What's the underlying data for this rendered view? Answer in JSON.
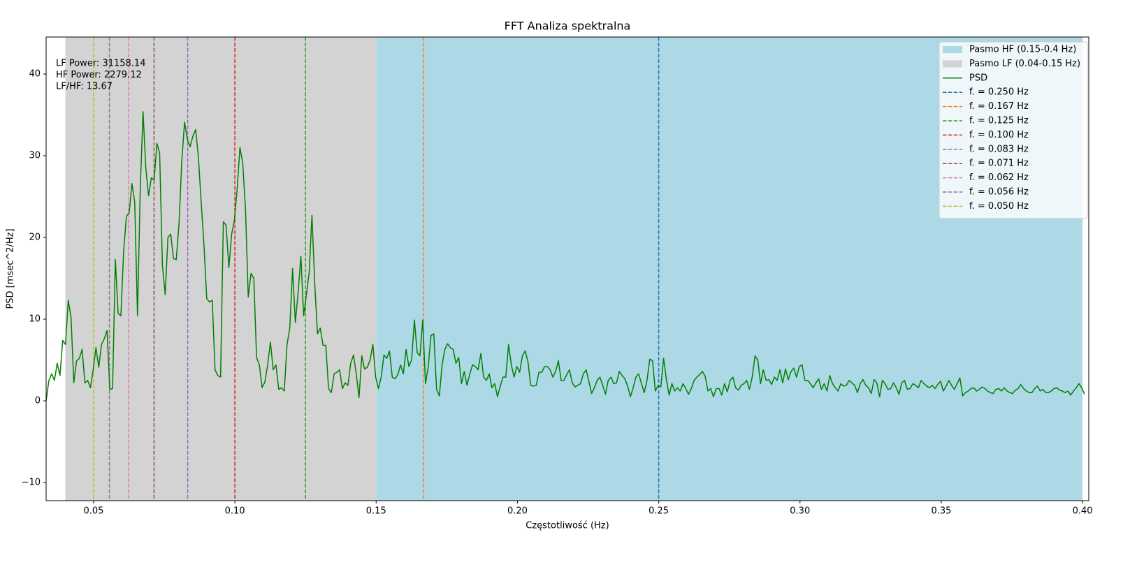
{
  "chart_data": {
    "type": "line",
    "title": "FFT Analiza spektralna",
    "x_label": "Częstotliwość (Hz)",
    "y_label": "PSD [msec^2/Hz]",
    "annotation": [
      "LF Power: 31158.14",
      "HF Power: 2279.12",
      "LF/HF: 13.67"
    ],
    "xlim": [
      0.0332,
      0.4022
    ],
    "ylim": [
      -12.22,
      44.53
    ],
    "xticks": [
      0.05,
      {
        "value": 0.1,
        "label": "0.10"
      },
      0.15,
      {
        "value": 0.2,
        "label": "0.20"
      },
      0.25,
      {
        "value": 0.3,
        "label": "0.30"
      },
      0.35,
      {
        "value": 0.4,
        "label": "0.40"
      }
    ],
    "yticks": [
      {
        "value": -10,
        "label": "−10"
      },
      0,
      10,
      20,
      30,
      40
    ],
    "legend_position": "upper right",
    "bands": [
      {
        "name": "Pasmo HF (0.15-0.4 Hz)",
        "color": "#add8e6",
        "range": [
          0.15,
          0.4
        ]
      },
      {
        "name": "Pasmo LF (0.04-0.15 Hz)",
        "color": "#d3d3d3",
        "range": [
          0.04,
          0.15
        ]
      }
    ],
    "x": [
      0.0332,
      0.03418,
      0.03516,
      0.03614,
      0.03712,
      0.0381,
      0.03908,
      0.04006,
      0.04104,
      0.04202,
      0.043,
      0.04398,
      0.04496,
      0.04594,
      0.04692,
      0.0479,
      0.04888,
      0.04986,
      0.05084,
      0.05182,
      0.0528,
      0.05378,
      0.05476,
      0.05574,
      0.05672,
      0.0577,
      0.05868,
      0.05966,
      0.06064,
      0.06162,
      0.0626,
      0.06358,
      0.06456,
      0.06554,
      0.06652,
      0.0675,
      0.06848,
      0.06946,
      0.07044,
      0.07142,
      0.0724,
      0.07338,
      0.07436,
      0.07534,
      0.07632,
      0.0773,
      0.07828,
      0.07926,
      0.08024,
      0.08122,
      0.0822,
      0.08318,
      0.08416,
      0.08514,
      0.08612,
      0.0871,
      0.08808,
      0.08906,
      0.09004,
      0.09102,
      0.092,
      0.09298,
      0.09396,
      0.09494,
      0.09592,
      0.0969,
      0.09788,
      0.09886,
      0.09984,
      0.10082,
      0.1018,
      0.10278,
      0.10376,
      0.10474,
      0.10572,
      0.1067,
      0.10768,
      0.10866,
      0.10964,
      0.11062,
      0.1116,
      0.11258,
      0.11356,
      0.11454,
      0.11552,
      0.1165,
      0.11748,
      0.11846,
      0.11944,
      0.12042,
      0.1214,
      0.12238,
      0.12336,
      0.12434,
      0.12532,
      0.1263,
      0.12728,
      0.12826,
      0.12924,
      0.13022,
      0.1312,
      0.13218,
      0.13316,
      0.13414,
      0.13512,
      0.1361,
      0.13708,
      0.13806,
      0.13904,
      0.14002,
      0.141,
      0.14198,
      0.14296,
      0.14394,
      0.14492,
      0.1459,
      0.14688,
      0.14786,
      0.14884,
      0.14982,
      0.1508,
      0.15178,
      0.15276,
      0.15374,
      0.15472,
      0.1557,
      0.15668,
      0.15766,
      0.15864,
      0.15962,
      0.1606,
      0.16158,
      0.16256,
      0.16354,
      0.16452,
      0.1655,
      0.16648,
      0.16746,
      0.16844,
      0.16942,
      0.1704,
      0.17138,
      0.17236,
      0.17334,
      0.17432,
      0.1753,
      0.17628,
      0.17726,
      0.17824,
      0.17922,
      0.1802,
      0.18118,
      0.18216,
      0.18314,
      0.18412,
      0.1851,
      0.18608,
      0.18706,
      0.18804,
      0.18902,
      0.19,
      0.19098,
      0.19196,
      0.19294,
      0.19392,
      0.1949,
      0.19588,
      0.19686,
      0.19784,
      0.19882,
      0.1998,
      0.20078,
      0.20176,
      0.20274,
      0.20372,
      0.2047,
      0.20568,
      0.20666,
      0.20764,
      0.20862,
      0.2096,
      0.21058,
      0.21156,
      0.21254,
      0.21352,
      0.2145,
      0.21548,
      0.21646,
      0.21744,
      0.21842,
      0.2194,
      0.22038,
      0.22136,
      0.22234,
      0.22332,
      0.2243,
      0.22528,
      0.22626,
      0.22724,
      0.22822,
      0.2292,
      0.23018,
      0.23116,
      0.23214,
      0.23312,
      0.2341,
      0.23508,
      0.23606,
      0.23704,
      0.23802,
      0.239,
      0.23998,
      0.24096,
      0.24194,
      0.24292,
      0.2439,
      0.24488,
      0.24586,
      0.24684,
      0.24782,
      0.2488,
      0.24978,
      0.25076,
      0.25174,
      0.25272,
      0.2537,
      0.25468,
      0.25566,
      0.25664,
      0.25762,
      0.2586,
      0.25958,
      0.26056,
      0.26154,
      0.26252,
      0.2635,
      0.26448,
      0.26546,
      0.26644,
      0.26742,
      0.2684,
      0.26938,
      0.27036,
      0.27134,
      0.27232,
      0.2733,
      0.27428,
      0.27526,
      0.27624,
      0.27722,
      0.2782,
      0.27918,
      0.28016,
      0.28114,
      0.28212,
      0.2831,
      0.28408,
      0.28506,
      0.28604,
      0.28702,
      0.288,
      0.28898,
      0.28996,
      0.29094,
      0.29192,
      0.2929,
      0.29388,
      0.29486,
      0.29584,
      0.29682,
      0.2978,
      0.29878,
      0.29976,
      0.30074,
      0.30172,
      0.3027,
      0.30368,
      0.30466,
      0.30564,
      0.30662,
      0.3076,
      0.30858,
      0.30956,
      0.31054,
      0.31152,
      0.3125,
      0.31348,
      0.31446,
      0.31544,
      0.31642,
      0.3174,
      0.31838,
      0.31936,
      0.32034,
      0.32132,
      0.3223,
      0.32328,
      0.32426,
      0.32524,
      0.32622,
      0.3272,
      0.32818,
      0.32916,
      0.33014,
      0.33112,
      0.3321,
      0.33308,
      0.33406,
      0.33504,
      0.33602,
      0.337,
      0.33798,
      0.33896,
      0.33994,
      0.34092,
      0.3419,
      0.34288,
      0.34386,
      0.34484,
      0.34582,
      0.3468,
      0.34778,
      0.34876,
      0.34974,
      0.35072,
      0.3517,
      0.35268,
      0.35366,
      0.35464,
      0.35562,
      0.3566,
      0.35758,
      0.35856,
      0.35954,
      0.36052,
      0.3615,
      0.36248,
      0.36346,
      0.36444,
      0.36542,
      0.3664,
      0.36738,
      0.36836,
      0.36934,
      0.37032,
      0.3713,
      0.37228,
      0.37326,
      0.37424,
      0.37522,
      0.3762,
      0.37718,
      0.37816,
      0.37914,
      0.38012,
      0.3811,
      0.38208,
      0.38306,
      0.38404,
      0.38502,
      0.386,
      0.38698,
      0.38796,
      0.38894,
      0.38992,
      0.3909,
      0.39188,
      0.39286,
      0.39384,
      0.39482,
      0.3958,
      0.39678,
      0.39776,
      0.39874,
      0.39972,
      0.4007
    ],
    "series": [
      {
        "name": "PSD",
        "color": "#008000",
        "values": [
          0,
          2.5,
          3.3,
          2.5,
          4.6,
          3.1,
          7.4,
          6.9,
          12.3,
          10.2,
          2.2,
          4.9,
          5.2,
          6.3,
          2.2,
          2.5,
          1.6,
          3.8,
          6.5,
          4.1,
          6.9,
          7.6,
          8.6,
          1.4,
          1.5,
          17.3,
          10.7,
          10.4,
          18.3,
          22.6,
          23.0,
          26.6,
          24.3,
          10.4,
          26.0,
          35.4,
          28.5,
          25.1,
          27.3,
          27.0,
          31.5,
          30.3,
          16.6,
          13.0,
          20.0,
          20.4,
          17.4,
          17.3,
          21.7,
          29.4,
          34.1,
          32.0,
          31.1,
          32.4,
          33.2,
          29.8,
          24.3,
          19.1,
          12.5,
          12.1,
          12.3,
          3.8,
          3.1,
          2.9,
          21.9,
          21.5,
          16.3,
          20.4,
          22.1,
          26.0,
          31.0,
          29.1,
          23.4,
          12.7,
          15.6,
          15.0,
          5.3,
          4.4,
          1.6,
          2.3,
          4.4,
          7.2,
          3.8,
          4.4,
          1.4,
          1.6,
          1.2,
          6.9,
          8.9,
          16.2,
          9.6,
          13.2,
          17.7,
          10.4,
          13.0,
          15.7,
          22.7,
          14.4,
          8.2,
          8.9,
          6.8,
          6.8,
          1.5,
          1.0,
          3.3,
          3.5,
          3.8,
          1.5,
          2.2,
          1.9,
          4.6,
          5.6,
          3.3,
          0.4,
          5.5,
          3.9,
          4.1,
          5.0,
          6.9,
          2.9,
          1.5,
          2.9,
          5.6,
          5.2,
          6.1,
          2.9,
          2.7,
          3.2,
          4.4,
          3.3,
          6.3,
          4.2,
          5.0,
          9.9,
          5.9,
          5.5,
          9.9,
          2.1,
          4.2,
          8.0,
          8.2,
          1.4,
          0.6,
          4.4,
          6.3,
          7.0,
          6.5,
          6.3,
          4.6,
          5.3,
          2.1,
          3.6,
          1.9,
          3.3,
          4.4,
          4.2,
          3.8,
          5.8,
          2.9,
          2.5,
          3.3,
          1.6,
          2.1,
          0.5,
          1.8,
          2.9,
          2.9,
          6.9,
          4.4,
          2.9,
          4.2,
          3.5,
          5.5,
          6.1,
          4.8,
          1.9,
          1.8,
          1.9,
          3.5,
          3.5,
          4.2,
          4.2,
          3.8,
          2.9,
          3.6,
          4.9,
          2.5,
          2.5,
          3.2,
          3.8,
          2.2,
          1.7,
          1.9,
          2.1,
          3.3,
          3.8,
          2.4,
          0.9,
          1.6,
          2.5,
          2.9,
          1.9,
          0.8,
          2.5,
          2.9,
          2.1,
          2.2,
          3.6,
          3.1,
          2.7,
          1.8,
          0.5,
          1.6,
          2.9,
          3.3,
          2.1,
          1.0,
          2.5,
          5.1,
          4.9,
          1.2,
          1.9,
          1.7,
          5.2,
          2.6,
          0.7,
          2.1,
          1.2,
          1.6,
          1.2,
          2.1,
          1.5,
          0.8,
          1.5,
          2.5,
          2.9,
          3.2,
          3.6,
          3.0,
          1.2,
          1.5,
          0.5,
          1.5,
          1.5,
          0.7,
          2.1,
          1.1,
          2.5,
          2.9,
          1.6,
          1.3,
          1.9,
          2.1,
          2.5,
          1.4,
          2.9,
          5.5,
          5.0,
          2.1,
          3.8,
          2.5,
          2.6,
          2.0,
          2.9,
          2.5,
          3.8,
          2.2,
          3.9,
          2.6,
          3.6,
          4.0,
          2.9,
          4.2,
          4.4,
          2.5,
          2.5,
          2.1,
          1.6,
          2.2,
          2.7,
          1.4,
          2.1,
          1.2,
          3.1,
          2.1,
          1.6,
          1.2,
          2.1,
          1.8,
          1.9,
          2.5,
          2.2,
          1.9,
          1.0,
          2.1,
          2.6,
          1.9,
          1.6,
          0.9,
          2.6,
          2.2,
          0.5,
          2.5,
          2.1,
          1.4,
          1.5,
          2.2,
          1.6,
          0.8,
          2.2,
          2.5,
          1.4,
          1.5,
          2.1,
          1.9,
          1.6,
          2.5,
          2.1,
          1.8,
          1.6,
          1.9,
          1.5,
          2.0,
          2.4,
          1.2,
          1.8,
          2.5,
          1.9,
          1.4,
          2.1,
          2.8,
          0.6,
          1.0,
          1.2,
          1.5,
          1.6,
          1.2,
          1.4,
          1.7,
          1.5,
          1.2,
          1.0,
          0.9,
          1.4,
          1.5,
          1.2,
          1.6,
          1.2,
          1.0,
          0.9,
          1.3,
          1.5,
          2.0,
          1.5,
          1.2,
          1.0,
          1.0,
          1.5,
          1.8,
          1.2,
          1.4,
          1.0,
          1.0,
          1.2,
          1.5,
          1.6,
          1.3,
          1.2,
          1.0,
          1.2,
          0.7,
          1.2,
          1.6,
          2.1,
          1.6,
          0.8
        ]
      }
    ],
    "vlines": [
      {
        "name": "f. = 0.250 Hz",
        "color": "#1f77b4",
        "x": 0.25
      },
      {
        "name": "f. = 0.167 Hz",
        "color": "#ff7f0e",
        "x": 0.1667
      },
      {
        "name": "f. = 0.125 Hz",
        "color": "#2ca02c",
        "x": 0.125
      },
      {
        "name": "f. = 0.100 Hz",
        "color": "#d62728",
        "x": 0.1
      },
      {
        "name": "f. = 0.083 Hz",
        "color": "#9467bd",
        "x": 0.0833
      },
      {
        "name": "f. = 0.071 Hz",
        "color": "#8c564b",
        "x": 0.0714
      },
      {
        "name": "f. = 0.062 Hz",
        "color": "#e377c2",
        "x": 0.0624
      },
      {
        "name": "f. = 0.056 Hz",
        "color": "#7f7f7f",
        "x": 0.0556
      },
      {
        "name": "f. = 0.050 Hz",
        "color": "#bcbd22",
        "x": 0.05
      }
    ]
  }
}
